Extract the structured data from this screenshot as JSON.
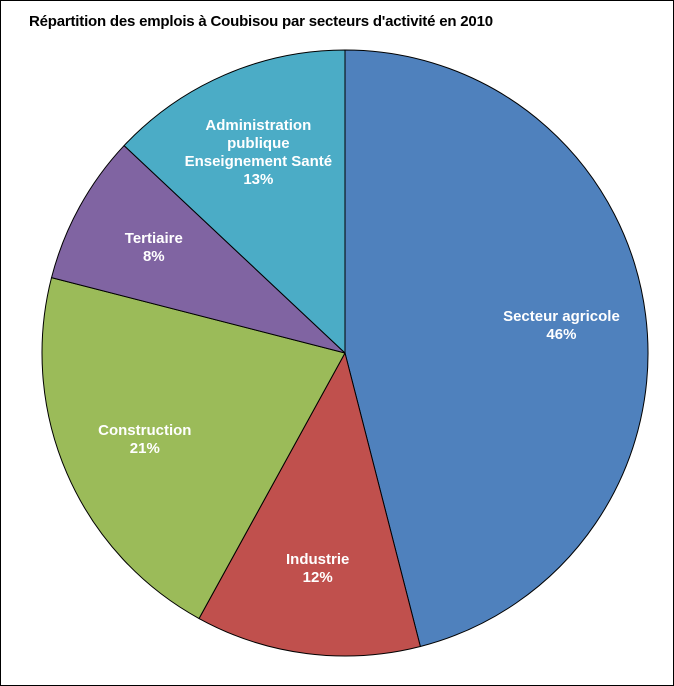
{
  "chart_data": {
    "type": "pie",
    "title": "Répartition des emplois à Coubisou par secteurs d'activité en 2010",
    "categories": [
      "Secteur agricole",
      "Industrie",
      "Construction",
      "Tertiaire",
      "Administration publique Enseignement Santé"
    ],
    "values": [
      46,
      12,
      21,
      8,
      13
    ],
    "value_labels": [
      "46%",
      "12%",
      "21%",
      "8%",
      "13%"
    ],
    "colors": [
      "#4f81bd",
      "#c0504d",
      "#9bbb59",
      "#8064a2",
      "#4bacc6"
    ]
  }
}
